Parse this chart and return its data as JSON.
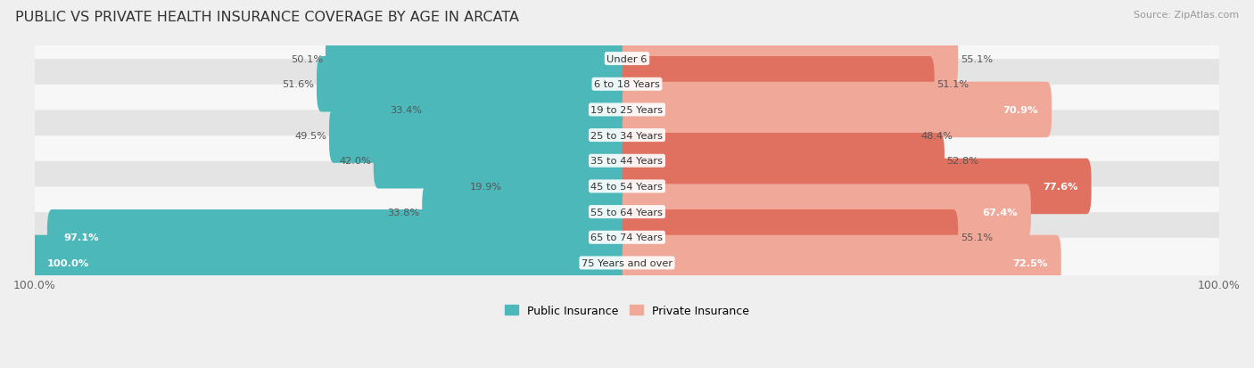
{
  "title": "PUBLIC VS PRIVATE HEALTH INSURANCE COVERAGE BY AGE IN ARCATA",
  "source": "Source: ZipAtlas.com",
  "categories": [
    "Under 6",
    "6 to 18 Years",
    "19 to 25 Years",
    "25 to 34 Years",
    "35 to 44 Years",
    "45 to 54 Years",
    "55 to 64 Years",
    "65 to 74 Years",
    "75 Years and over"
  ],
  "public_values": [
    50.1,
    51.6,
    33.4,
    49.5,
    42.0,
    19.9,
    33.8,
    97.1,
    100.0
  ],
  "private_values": [
    55.1,
    51.1,
    70.9,
    48.4,
    52.8,
    77.6,
    67.4,
    55.1,
    72.5
  ],
  "public_color": "#4db8ba",
  "private_color_light": "#f0a899",
  "private_color_dark": "#e07060",
  "private_dark_rows": [
    2,
    5,
    6,
    8
  ],
  "bg_color": "#efefef",
  "row_bg_light": "#f7f7f7",
  "row_bg_dark": "#e4e4e4",
  "bar_height": 0.58,
  "max_value": 100.0,
  "title_fontsize": 11.5,
  "source_fontsize": 8,
  "label_fontsize": 8.5,
  "tick_fontsize": 9
}
